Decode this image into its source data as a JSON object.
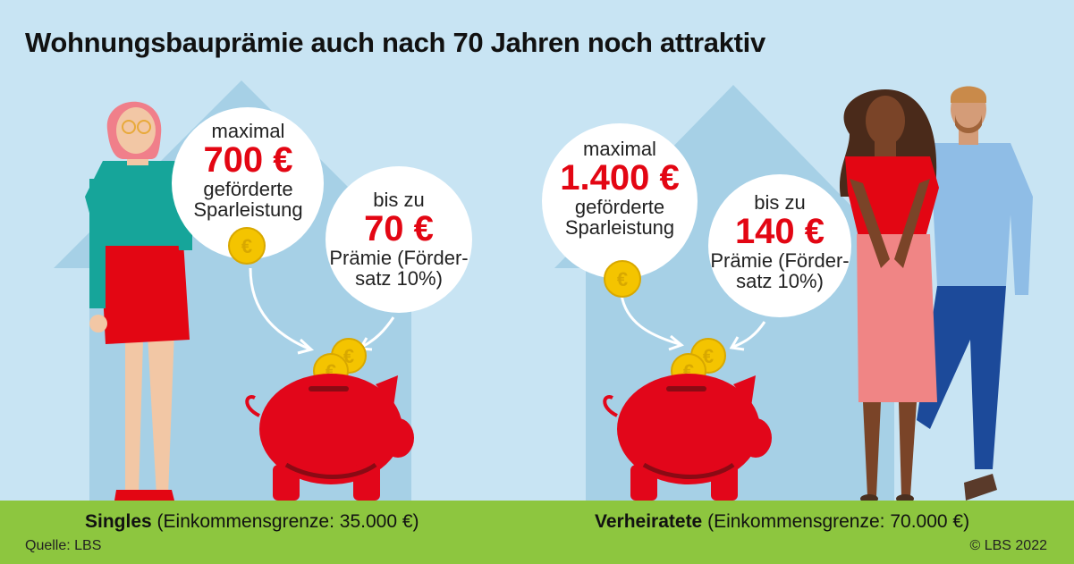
{
  "title": "Wohnungsbauprämie auch nach 70 Jahren noch attraktiv",
  "left": {
    "bubble_savings": {
      "line1": "maximal",
      "amount": "700 €",
      "line3": "geförderte",
      "line4": "Sparleistung"
    },
    "bubble_premium": {
      "line1": "bis zu",
      "amount": "70 €",
      "line3": "Prämie (Förder-",
      "line4": "satz 10%)"
    },
    "caption_label": "Singles",
    "caption_detail": " (Einkommensgrenze: 35.000 €)"
  },
  "right": {
    "bubble_savings": {
      "line1": "maximal",
      "amount": "1.400 €",
      "line3": "geförderte",
      "line4": "Sparleistung"
    },
    "bubble_premium": {
      "line1": "bis zu",
      "amount": "140 €",
      "line3": "Prämie (Förder-",
      "line4": "satz 10%)"
    },
    "caption_label": "Verheiratete",
    "caption_detail": " (Einkommensgrenze: 70.000 €)"
  },
  "source": "Quelle: LBS",
  "copyright": "© LBS 2022",
  "colors": {
    "sky": "#c8e4f3",
    "house": "#a6d0e6",
    "ground": "#8dc63f",
    "accent_red": "#e30613",
    "piggy": "#e2061a",
    "coin": "#f4c400"
  }
}
